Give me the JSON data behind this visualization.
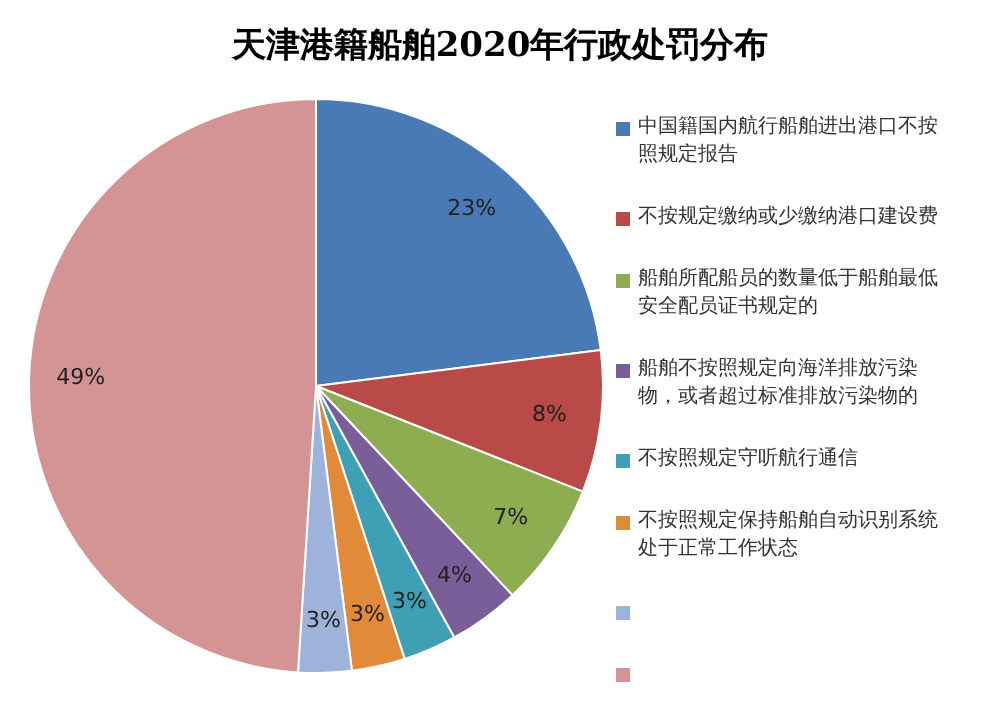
{
  "chart_data": {
    "type": "pie",
    "title": "天津港籍船舶2020年行政处罚分布",
    "categories": [
      "中国籍国内航行船舶进出港口不按照规定报告",
      "不按规定缴纳或少缴纳港口建设费",
      "船舶所配船员的数量低于船舶最低安全配员证书规定的",
      "船舶不按照规定向海洋排放污染物，或者超过标准排放污染物的",
      "不按照规定守听航行通信",
      "不按照规定保持船舶自动识别系统处于正常工作状态",
      null,
      null
    ],
    "values": [
      23,
      8,
      7,
      4,
      3,
      3,
      3,
      49
    ],
    "colors": [
      "#4a7ab5",
      "#b94a48",
      "#8eac50",
      "#7a5e9a",
      "#3fa0b5",
      "#e08a3a",
      "#9db3d9",
      "#d49494"
    ],
    "value_labels": [
      "23%",
      "8%",
      "7%",
      "4%",
      "3%",
      "3%",
      "3%",
      "49%"
    ],
    "legend": "right"
  }
}
